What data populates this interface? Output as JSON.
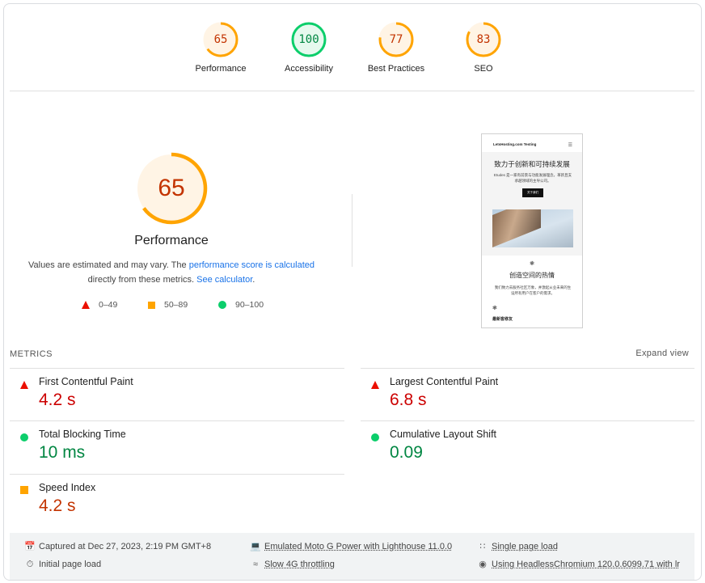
{
  "scores": [
    {
      "label": "Performance",
      "value": "65",
      "status": "average"
    },
    {
      "label": "Accessibility",
      "value": "100",
      "status": "pass"
    },
    {
      "label": "Best Practices",
      "value": "77",
      "status": "average"
    },
    {
      "label": "SEO",
      "value": "83",
      "status": "average"
    }
  ],
  "colors": {
    "fail": "#eb0f00",
    "average": "#ffa400",
    "pass": "#0cce6b",
    "average_text": "#c33300",
    "pass_text": "#018642"
  },
  "performance": {
    "score": "65",
    "title": "Performance",
    "note_prefix": "Values are estimated and may vary. The ",
    "note_link1": "performance score is calculated",
    "note_middle": " directly from these metrics. ",
    "note_link2": "See calculator",
    "note_suffix": ".",
    "legend": [
      {
        "icon": "red-triangle-icon",
        "range": "0–49"
      },
      {
        "icon": "orange-square-icon",
        "range": "50–89"
      },
      {
        "icon": "green-circle-icon",
        "range": "90–100"
      }
    ]
  },
  "thumbnail": {
    "site_name": "LetsHosting.com Testing",
    "heading": "致力于创新和可持续发展",
    "paragraph": "Etudes 是一家有前景与功能发展理念，革新且支承越领域的主导公司。",
    "button": "关于我们",
    "heading2": "创造空间的热情",
    "paragraph2": "我们致力去服务社区万象，并激起从业未来的生设所有用户在客户的需求。",
    "heading3": "最新客修友"
  },
  "metrics": {
    "title": "METRICS",
    "expand_label": "Expand view",
    "items": [
      {
        "name": "First Contentful Paint",
        "value": "4.2 s",
        "status": "fail"
      },
      {
        "name": "Largest Contentful Paint",
        "value": "6.8 s",
        "status": "fail"
      },
      {
        "name": "Total Blocking Time",
        "value": "10 ms",
        "status": "pass"
      },
      {
        "name": "Cumulative Layout Shift",
        "value": "0.09",
        "status": "pass"
      },
      {
        "name": "Speed Index",
        "value": "4.2 s",
        "status": "average"
      }
    ]
  },
  "footer": {
    "captured": "Captured at Dec 27, 2023, 2:19 PM GMT+8",
    "device": "Emulated Moto G Power with Lighthouse 11.0.0",
    "session": "Single page load",
    "load": "Initial page load",
    "throttling": "Slow 4G throttling",
    "browser": "Using HeadlessChromium 120.0.6099.71 with lr"
  }
}
